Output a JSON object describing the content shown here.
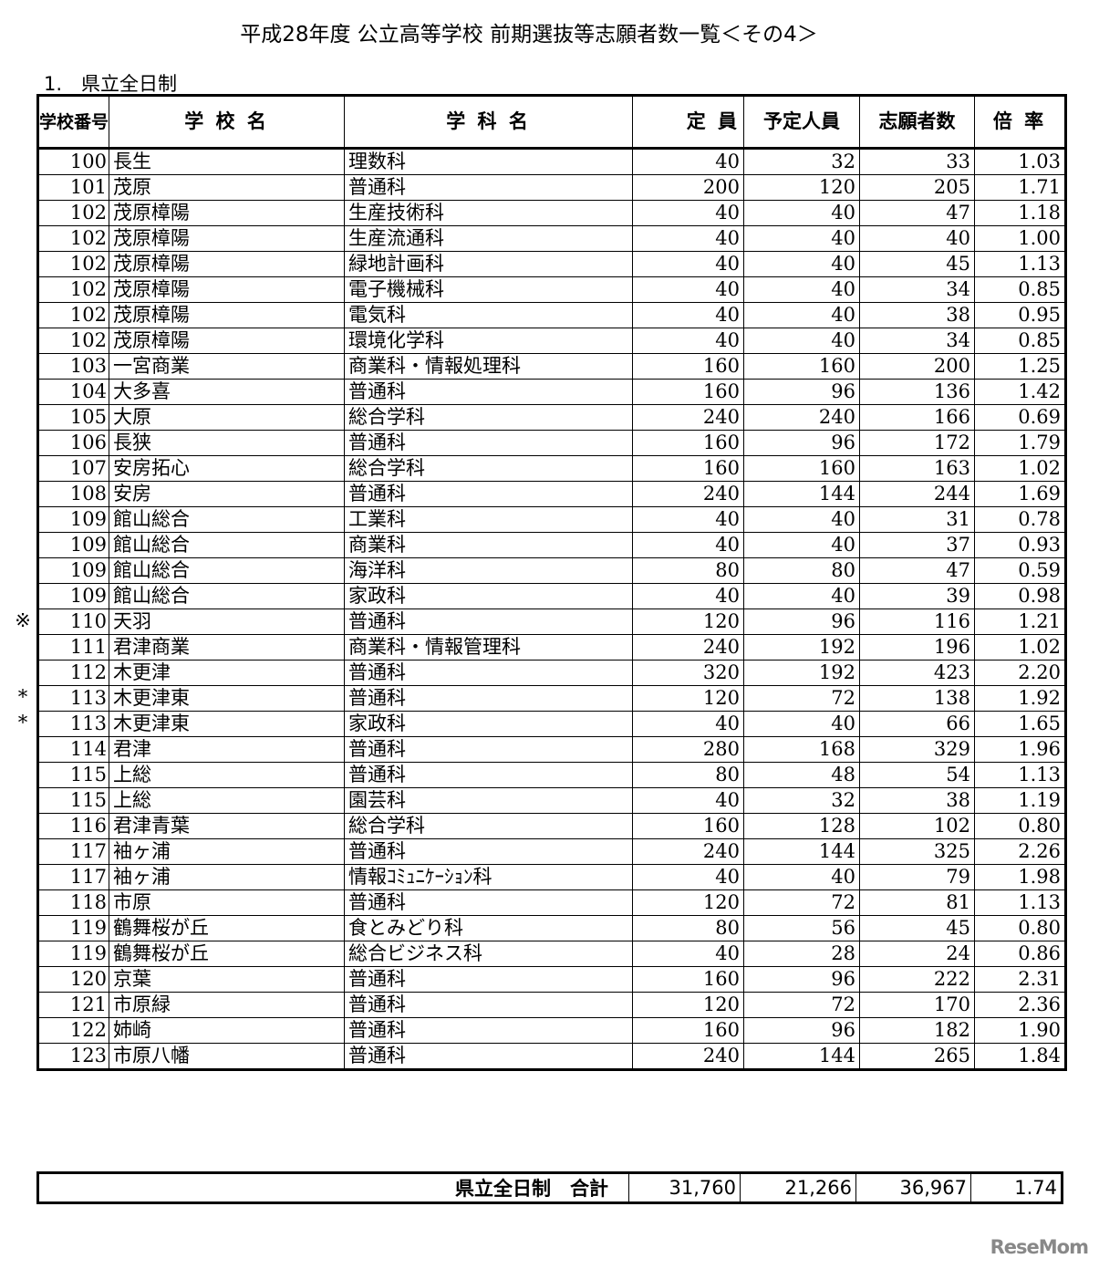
{
  "title": "平成28年度 公立高等学校 前期選抜等志願者数一覧＜その4＞",
  "section": "1.　県立全日制",
  "headers": [
    "学校番号",
    "学 校 名",
    "学 科 名",
    "定 員",
    "予定人員",
    "志願者数",
    "倍 率"
  ],
  "rows": [
    [
      "",
      "100",
      "長生",
      "理数科",
      "40",
      "32",
      "33",
      "1.03"
    ],
    [
      "",
      "101",
      "茂原",
      "普通科",
      "200",
      "120",
      "205",
      "1.71"
    ],
    [
      "",
      "102",
      "茂原樟陽",
      "生産技術科",
      "40",
      "40",
      "47",
      "1.18"
    ],
    [
      "",
      "102",
      "茂原樟陽",
      "生産流通科",
      "40",
      "40",
      "40",
      "1.00"
    ],
    [
      "",
      "102",
      "茂原樟陽",
      "緑地計画科",
      "40",
      "40",
      "45",
      "1.13"
    ],
    [
      "",
      "102",
      "茂原樟陽",
      "電子機械科",
      "40",
      "40",
      "34",
      "0.85"
    ],
    [
      "",
      "102",
      "茂原樟陽",
      "電気科",
      "40",
      "40",
      "38",
      "0.95"
    ],
    [
      "",
      "102",
      "茂原樟陽",
      "環境化学科",
      "40",
      "40",
      "34",
      "0.85"
    ],
    [
      "",
      "103",
      "一宮商業",
      "商業科・情報処理科",
      "160",
      "160",
      "200",
      "1.25"
    ],
    [
      "",
      "104",
      "大多喜",
      "普通科",
      "160",
      "96",
      "136",
      "1.42"
    ],
    [
      "",
      "105",
      "大原",
      "総合学科",
      "240",
      "240",
      "166",
      "0.69"
    ],
    [
      "",
      "106",
      "長狭",
      "普通科",
      "160",
      "96",
      "172",
      "1.79"
    ],
    [
      "",
      "107",
      "安房拓心",
      "総合学科",
      "160",
      "160",
      "163",
      "1.02"
    ],
    [
      "",
      "108",
      "安房",
      "普通科",
      "240",
      "144",
      "244",
      "1.69"
    ],
    [
      "",
      "109",
      "館山総合",
      "工業科",
      "40",
      "40",
      "31",
      "0.78"
    ],
    [
      "",
      "109",
      "館山総合",
      "商業科",
      "40",
      "40",
      "37",
      "0.93"
    ],
    [
      "",
      "109",
      "館山総合",
      "海洋科",
      "80",
      "80",
      "47",
      "0.59"
    ],
    [
      "",
      "109",
      "館山総合",
      "家政科",
      "40",
      "40",
      "39",
      "0.98"
    ],
    [
      "※",
      "110",
      "天羽",
      "普通科",
      "120",
      "96",
      "116",
      "1.21"
    ],
    [
      "",
      "111",
      "君津商業",
      "商業科・情報管理科",
      "240",
      "192",
      "196",
      "1.02"
    ],
    [
      "",
      "112",
      "木更津",
      "普通科",
      "320",
      "192",
      "423",
      "2.20"
    ],
    [
      "*",
      "113",
      "木更津東",
      "普通科",
      "120",
      "72",
      "138",
      "1.92"
    ],
    [
      "*",
      "113",
      "木更津東",
      "家政科",
      "40",
      "40",
      "66",
      "1.65"
    ],
    [
      "",
      "114",
      "君津",
      "普通科",
      "280",
      "168",
      "329",
      "1.96"
    ],
    [
      "",
      "115",
      "上総",
      "普通科",
      "80",
      "48",
      "54",
      "1.13"
    ],
    [
      "",
      "115",
      "上総",
      "園芸科",
      "40",
      "32",
      "38",
      "1.19"
    ],
    [
      "",
      "116",
      "君津青葉",
      "総合学科",
      "160",
      "128",
      "102",
      "0.80"
    ],
    [
      "",
      "117",
      "袖ヶ浦",
      "普通科",
      "240",
      "144",
      "325",
      "2.26"
    ],
    [
      "",
      "117",
      "袖ヶ浦",
      "情報ｺﾐｭﾆｹｰｼｮﾝ科",
      "40",
      "40",
      "79",
      "1.98"
    ],
    [
      "",
      "118",
      "市原",
      "普通科",
      "120",
      "72",
      "81",
      "1.13"
    ],
    [
      "",
      "119",
      "鶴舞桜が丘",
      "食とみどり科",
      "80",
      "56",
      "45",
      "0.80"
    ],
    [
      "",
      "119",
      "鶴舞桜が丘",
      "総合ビジネス科",
      "40",
      "28",
      "24",
      "0.86"
    ],
    [
      "",
      "120",
      "京葉",
      "普通科",
      "160",
      "96",
      "222",
      "2.31"
    ],
    [
      "",
      "121",
      "市原緑",
      "普通科",
      "120",
      "72",
      "170",
      "2.36"
    ],
    [
      "",
      "122",
      "姉崎",
      "普通科",
      "160",
      "96",
      "182",
      "1.90"
    ],
    [
      "",
      "123",
      "市原八幡",
      "普通科",
      "240",
      "144",
      "265",
      "1.84"
    ]
  ],
  "total": {
    "label": "県立全日制　合計",
    "capacity": "31,760",
    "planned": "21,266",
    "applicants": "36,967",
    "ratio": "1.74"
  },
  "watermark": "ReseMom"
}
